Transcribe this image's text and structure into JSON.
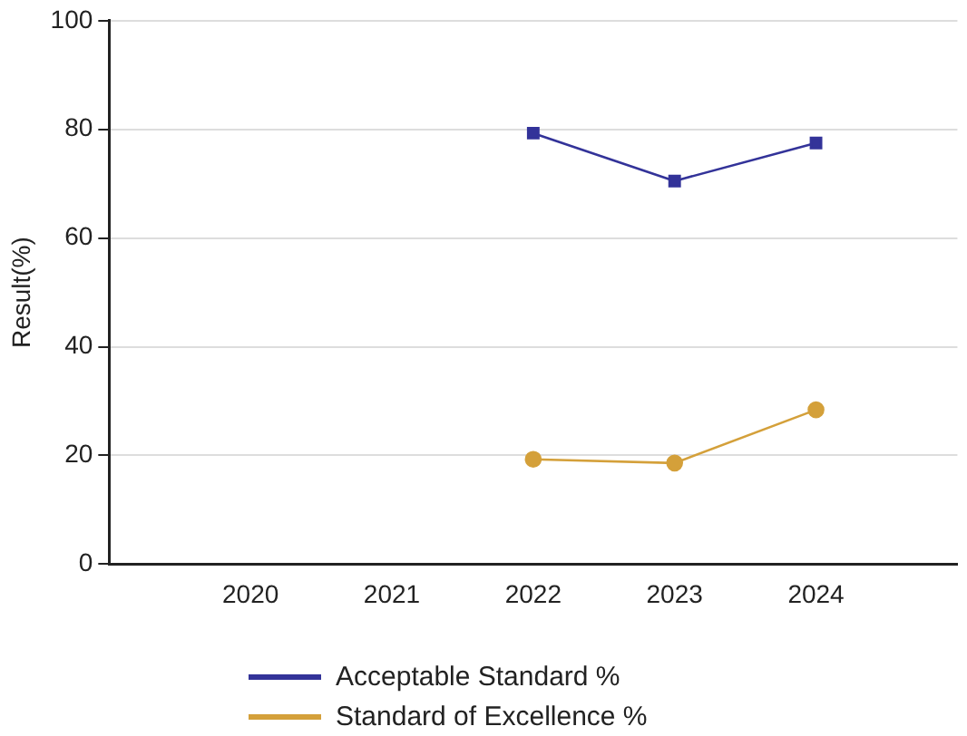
{
  "chart_data": {
    "type": "line",
    "ylabel": "Result(%)",
    "categories": [
      "2020",
      "2021",
      "2022",
      "2023",
      "2024"
    ],
    "series": [
      {
        "name": "Acceptable Standard %",
        "color": "#333399",
        "values": [
          null,
          null,
          79.3,
          70.5,
          77.5
        ],
        "marker": "square"
      },
      {
        "name": "Standard of Excellence %",
        "color": "#d4a03a",
        "values": [
          null,
          null,
          19.3,
          18.6,
          28.4
        ],
        "marker": "circle"
      }
    ],
    "ylim": [
      0,
      100
    ],
    "yticks": [
      0,
      20,
      40,
      60,
      80,
      100
    ],
    "grid": "y",
    "legend": "bottom"
  }
}
